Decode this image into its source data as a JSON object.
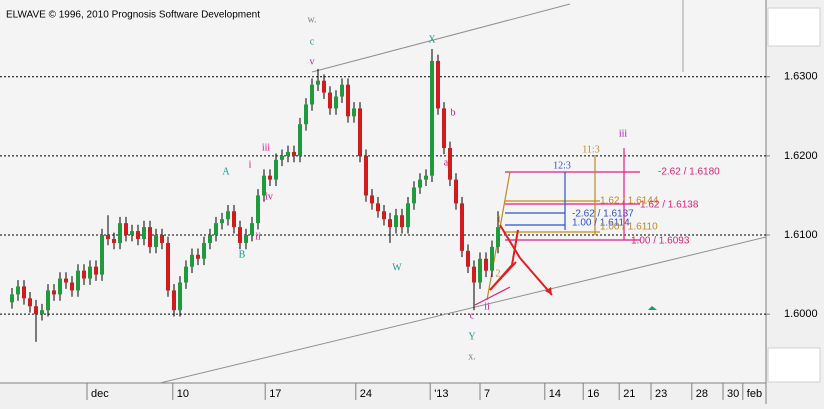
{
  "chart_data": {
    "type": "candlestick",
    "title": "ELWAVE © 1996, 2010 Prognosis Software Development",
    "colors": {
      "up": "#1f9a3c",
      "down": "#d01c1c"
    },
    "grid": true,
    "x": [
      1,
      2,
      3,
      4,
      5,
      6,
      7,
      8,
      9,
      10,
      11,
      12,
      13,
      14,
      15,
      16,
      17,
      18,
      19,
      20,
      21,
      22,
      23,
      24,
      25,
      26,
      27,
      28,
      29,
      30,
      31,
      32,
      33,
      34,
      35,
      36,
      37,
      38,
      39,
      40,
      41,
      42,
      43,
      44,
      45,
      46,
      47,
      48,
      49,
      50,
      51,
      52,
      53,
      54,
      55,
      56,
      57,
      58,
      59,
      60,
      61,
      62,
      63,
      64,
      65,
      66,
      67,
      68,
      69,
      70,
      71,
      72,
      73,
      74,
      75,
      76,
      77,
      78,
      79,
      80,
      81,
      82
    ],
    "open": [
      1.6015,
      1.6025,
      1.6035,
      1.602,
      1.601,
      1.6,
      1.6005,
      1.603,
      1.6025,
      1.6045,
      1.604,
      1.603,
      1.6055,
      1.6045,
      1.606,
      1.605,
      1.61,
      1.6095,
      1.609,
      1.6115,
      1.61,
      1.6105,
      1.6095,
      1.611,
      1.6085,
      1.61,
      1.609,
      1.603,
      1.6005,
      1.604,
      1.606,
      1.6075,
      1.607,
      1.609,
      1.61,
      1.6115,
      1.612,
      1.613,
      1.611,
      1.609,
      1.61,
      1.6115,
      1.615,
      1.6175,
      1.617,
      1.6195,
      1.62,
      1.6205,
      1.62,
      1.624,
      1.6265,
      1.629,
      1.6295,
      1.628,
      1.626,
      1.6275,
      1.629,
      1.625,
      1.626,
      1.62,
      1.615,
      1.614,
      1.613,
      1.612,
      1.611,
      1.6125,
      1.611,
      1.614,
      1.616,
      1.617,
      1.6175,
      1.632,
      1.626,
      1.621,
      1.617,
      1.614,
      1.608,
      1.606,
      1.604,
      1.607,
      1.6055,
      1.6085
    ],
    "high": [
      1.6033,
      1.6043,
      1.6043,
      1.6028,
      1.6018,
      1.6013,
      1.6038,
      1.6038,
      1.6053,
      1.6053,
      1.6048,
      1.6063,
      1.6063,
      1.6068,
      1.6068,
      1.6108,
      1.6125,
      1.6103,
      1.6123,
      1.6123,
      1.6113,
      1.6113,
      1.6118,
      1.6118,
      1.6108,
      1.6108,
      1.6098,
      1.6038,
      1.6048,
      1.6068,
      1.6083,
      1.6083,
      1.6098,
      1.6108,
      1.6123,
      1.6128,
      1.6138,
      1.6138,
      1.6118,
      1.6108,
      1.6123,
      1.6158,
      1.6183,
      1.6183,
      1.6203,
      1.6208,
      1.6213,
      1.6213,
      1.6248,
      1.6273,
      1.6298,
      1.631,
      1.6303,
      1.6288,
      1.6283,
      1.6298,
      1.6298,
      1.6268,
      1.6268,
      1.6208,
      1.6158,
      1.6148,
      1.6138,
      1.6128,
      1.6133,
      1.6133,
      1.6148,
      1.6168,
      1.6178,
      1.6183,
      1.6335,
      1.6328,
      1.6268,
      1.6218,
      1.6178,
      1.6148,
      1.6088,
      1.6068,
      1.6078,
      1.6078,
      1.6093,
      1.613
    ],
    "low": [
      1.6007,
      1.6017,
      1.6012,
      1.6002,
      1.5965,
      1.5992,
      1.5997,
      1.6017,
      1.6017,
      1.6032,
      1.6022,
      1.6022,
      1.6037,
      1.6037,
      1.6042,
      1.6042,
      1.6087,
      1.6082,
      1.6082,
      1.6092,
      1.6092,
      1.6087,
      1.6087,
      1.6077,
      1.6077,
      1.6082,
      1.6022,
      1.5997,
      1.5997,
      1.6032,
      1.6052,
      1.6062,
      1.6062,
      1.6082,
      1.6092,
      1.6107,
      1.6112,
      1.6102,
      1.6082,
      1.6082,
      1.6092,
      1.6107,
      1.6142,
      1.6162,
      1.6162,
      1.6187,
      1.6192,
      1.6192,
      1.6192,
      1.6232,
      1.6257,
      1.6282,
      1.6272,
      1.6252,
      1.6252,
      1.6267,
      1.6242,
      1.6242,
      1.6192,
      1.6142,
      1.6132,
      1.6122,
      1.6112,
      1.609,
      1.6102,
      1.6102,
      1.6102,
      1.6132,
      1.6152,
      1.6162,
      1.6167,
      1.6252,
      1.6202,
      1.6162,
      1.6132,
      1.6072,
      1.6052,
      1.6005,
      1.6032,
      1.6047,
      1.6047,
      1.6077
    ],
    "close": [
      1.6025,
      1.6035,
      1.602,
      1.601,
      1.6,
      1.6005,
      1.603,
      1.6025,
      1.6045,
      1.604,
      1.603,
      1.6055,
      1.6045,
      1.606,
      1.605,
      1.61,
      1.6095,
      1.609,
      1.6115,
      1.61,
      1.6105,
      1.6095,
      1.611,
      1.6085,
      1.61,
      1.609,
      1.603,
      1.6005,
      1.604,
      1.606,
      1.6075,
      1.607,
      1.609,
      1.61,
      1.6115,
      1.612,
      1.613,
      1.611,
      1.609,
      1.61,
      1.6115,
      1.615,
      1.6175,
      1.617,
      1.6195,
      1.62,
      1.6205,
      1.62,
      1.624,
      1.6265,
      1.629,
      1.6295,
      1.628,
      1.626,
      1.6275,
      1.629,
      1.625,
      1.626,
      1.62,
      1.615,
      1.614,
      1.613,
      1.612,
      1.611,
      1.6125,
      1.611,
      1.614,
      1.616,
      1.617,
      1.6175,
      1.632,
      1.626,
      1.621,
      1.617,
      1.614,
      1.608,
      1.606,
      1.604,
      1.607,
      1.6055,
      1.6085,
      1.611
    ],
    "xlim": [
      0,
      126
    ],
    "xticks": [
      {
        "value": 13.5,
        "label": "dec"
      },
      {
        "value": 27.8,
        "label": "10"
      },
      {
        "value": 43.2,
        "label": "17"
      },
      {
        "value": 58.3,
        "label": "24"
      },
      {
        "value": 70.7,
        "label": "'13"
      },
      {
        "value": 79,
        "label": "7"
      },
      {
        "value": 89.8,
        "label": "14"
      },
      {
        "value": 96.2,
        "label": "16"
      },
      {
        "value": 102.2,
        "label": "21"
      },
      {
        "value": 107.5,
        "label": "23"
      },
      {
        "value": 114.3,
        "label": "28"
      },
      {
        "value": 119.5,
        "label": "30"
      },
      {
        "value": 122.8,
        "label": "feb"
      }
    ],
    "ylim": [
      1.5913,
      1.6397
    ],
    "yticks": [
      {
        "value": 1.6,
        "label": "1.6000"
      },
      {
        "value": 1.61,
        "label": "1.6100"
      },
      {
        "value": 1.62,
        "label": "1.6200"
      },
      {
        "value": 1.63,
        "label": "1.6300"
      }
    ],
    "annotations": [
      {
        "text": "w.",
        "color": "#808080"
      },
      {
        "text": "c",
        "color": "#1a9a8a"
      },
      {
        "text": "v",
        "color": "#cc1a8a"
      },
      {
        "text": "iii",
        "color": "#cc1a8a"
      },
      {
        "text": "iv",
        "color": "#cc1a8a"
      },
      {
        "text": "i",
        "color": "#cc1a8a"
      },
      {
        "text": "ii",
        "color": "#cc1a8a"
      },
      {
        "text": "A",
        "color": "#1a9a8a"
      },
      {
        "text": "B",
        "color": "#1a9a8a"
      },
      {
        "text": "W",
        "color": "#1a9a8a"
      },
      {
        "text": "X",
        "color": "#1a9a8a"
      },
      {
        "text": "b",
        "color": "#cc1a8a"
      },
      {
        "text": "a",
        "color": "#cc1a8a"
      },
      {
        "text": "c",
        "color": "#cc1a8a"
      },
      {
        "text": "Y",
        "color": "#1a9a8a"
      },
      {
        "text": "x.",
        "color": "#808080"
      },
      {
        "text": "ii",
        "color": "#cc1a8a"
      },
      {
        "text": "1",
        "color": "#d08a1a"
      },
      {
        "text": "2",
        "color": "#d08a1a"
      },
      {
        "text": "iii",
        "color": "#9a1ab0"
      },
      {
        "text": "11:3",
        "color": "#c08a20"
      },
      {
        "text": "12:3",
        "color": "#3050d0"
      },
      {
        "text": "-2.62 / 1.6180",
        "color": "#e0207a"
      },
      {
        "text": "1.62 / 1.6144",
        "color": "#c08a20"
      },
      {
        "text": "1.62 / 1.6138",
        "color": "#e0207a"
      },
      {
        "text": "-2.62 / 1.6137",
        "color": "#3050d0"
      },
      {
        "text": "1.00 / 1.6114",
        "color": "#3050d0"
      },
      {
        "text": "1.00 / 1.6110",
        "color": "#c08a20"
      },
      {
        "text": "1.00 / 1.6093",
        "color": "#e0207a"
      }
    ]
  }
}
